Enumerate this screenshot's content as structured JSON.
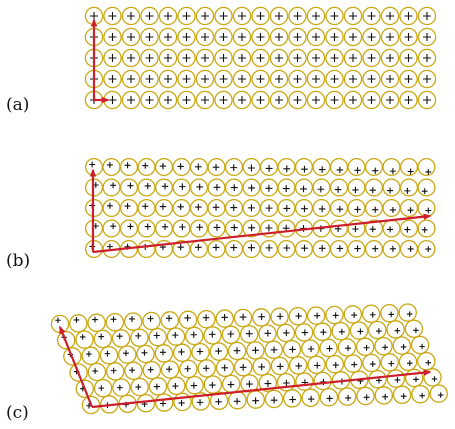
{
  "colors": {
    "circle_stroke": "#C9A811",
    "plus_mark": "#111111",
    "arrow": "#CC1F2B"
  },
  "panels": [
    {
      "label": "(a)",
      "lattice": "undeformed",
      "rows": 5,
      "columns": 19
    },
    {
      "label": "(b)",
      "lattice": "sheared",
      "rows": 5,
      "columns": 20
    },
    {
      "label": "(c)",
      "lattice": "skewed",
      "rows": 6,
      "columns": 20
    }
  ]
}
